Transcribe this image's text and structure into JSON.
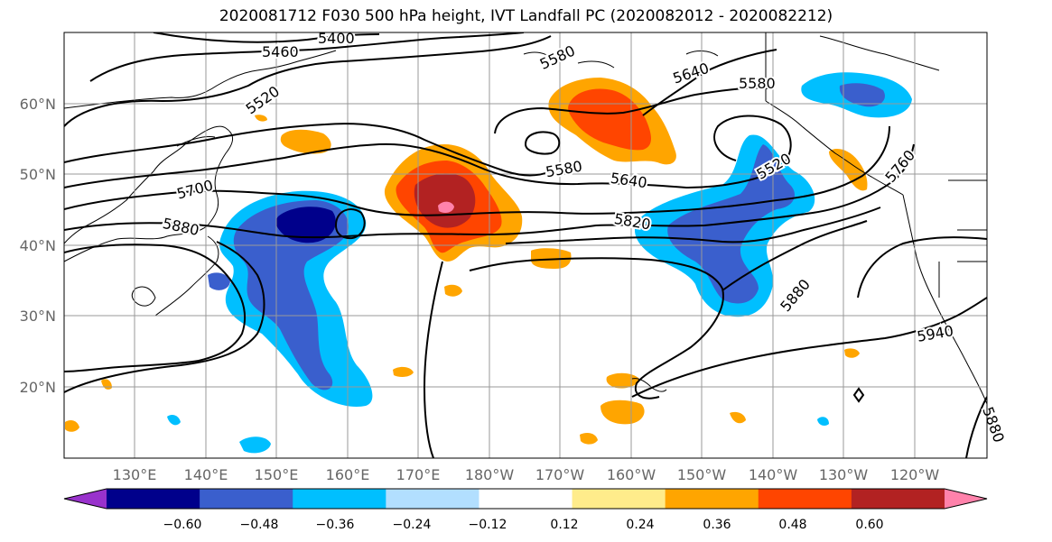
{
  "title": "2020081712 F030 500 hPa height, IVT Landfall PC (2020082012 - 2020082212)",
  "lat_labels": [
    "60°N",
    "50°N",
    "40°N",
    "30°N",
    "20°N"
  ],
  "lon_labels": [
    "130°E",
    "140°E",
    "150°E",
    "160°E",
    "170°E",
    "180°W",
    "170°W",
    "160°W",
    "150°W",
    "140°W",
    "130°W",
    "120°W"
  ],
  "contour_labels": [
    "5400",
    "5460",
    "5520",
    "5580",
    "5640",
    "5580",
    "5580",
    "5640",
    "5520",
    "5700",
    "5880",
    "5820",
    "5880",
    "5940",
    "5880",
    "5760"
  ],
  "colorbar": {
    "colors": [
      "#9932cc",
      "#00008b",
      "#3a5fcd",
      "#00bfff",
      "#b2dfff",
      "#ffffff",
      "#ffec8b",
      "#ffa500",
      "#ff4500",
      "#b22222",
      "#ff82ab"
    ],
    "tick_labels": [
      "−0.60",
      "−0.48",
      "−0.36",
      "−0.24",
      "−0.12",
      "0.12",
      "0.24",
      "0.36",
      "0.48",
      "0.60"
    ]
  },
  "shading": {
    "negative_colors": [
      "#00bfff",
      "#3a5fcd",
      "#00008b"
    ],
    "positive_colors": [
      "#ffa500",
      "#ff4500",
      "#b22222",
      "#ff82ab"
    ]
  }
}
